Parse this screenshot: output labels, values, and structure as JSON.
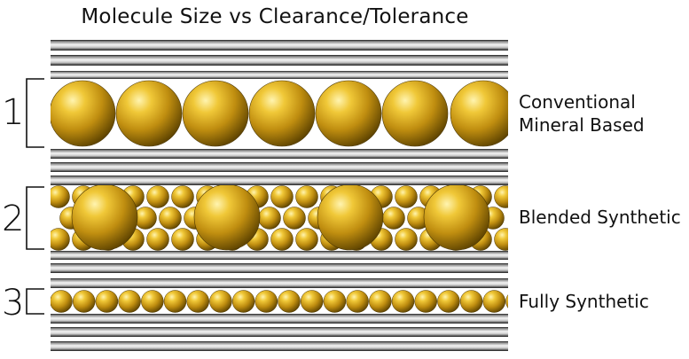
{
  "title": "Molecule Size vs Clearance/Tolerance",
  "rows": [
    {
      "number": "1",
      "label_lines": [
        "Conventional",
        "Mineral Based"
      ]
    },
    {
      "number": "2",
      "label_lines": [
        "Blended Synthetic"
      ]
    },
    {
      "number": "3",
      "label_lines": [
        "Fully Synthetic"
      ]
    }
  ],
  "colors": {
    "molecule_gold": "#d4a21a",
    "molecule_highlight": "#fff4b0",
    "molecule_shadow": "#5c4200",
    "pipe_dark": "#0d0d0d",
    "pipe_light": "#f2f2f2"
  }
}
